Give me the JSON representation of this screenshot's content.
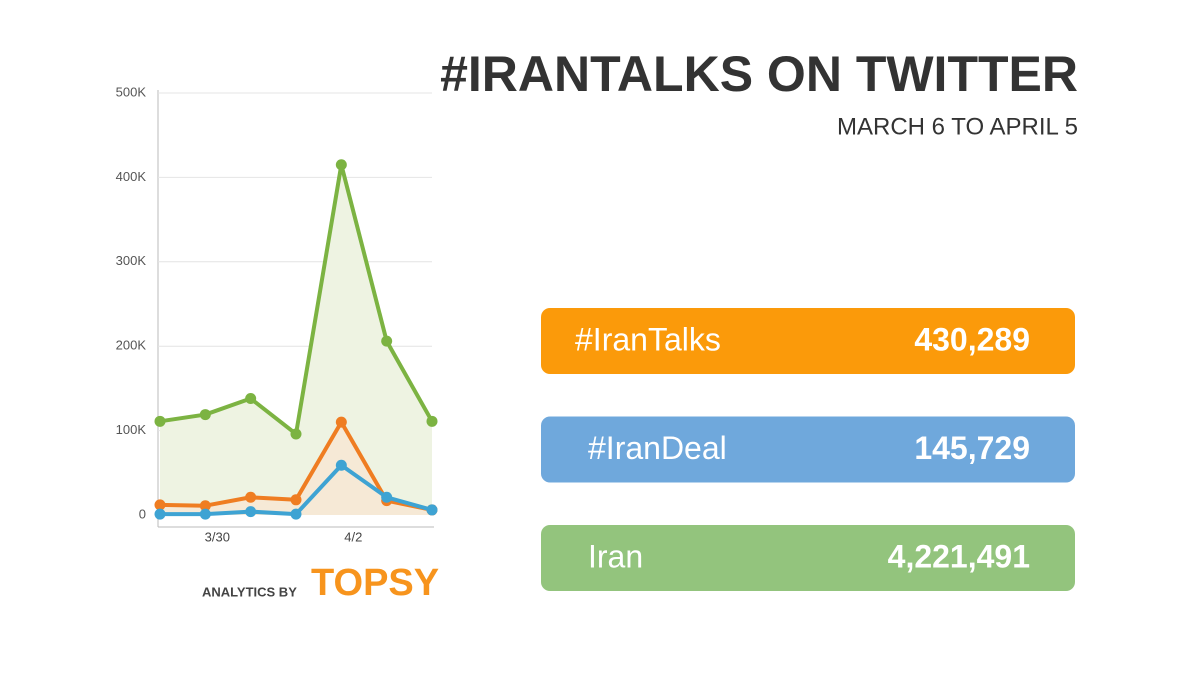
{
  "chart_data": {
    "type": "line",
    "title": "#IRANTALKS ON TWITTER",
    "subtitle": "MARCH 6 TO APRIL 5",
    "categories": [
      null,
      "3/30",
      null,
      null,
      "4/2",
      null,
      null
    ],
    "series": [
      {
        "color": "#7cb342",
        "fill": "#eef3e2",
        "values": [
          111000,
          119000,
          138000,
          96000,
          415000,
          206000,
          111000
        ]
      },
      {
        "color": "#ef7d22",
        "fill": "#f6e9d6",
        "values": [
          12000,
          11000,
          21000,
          18000,
          110000,
          17000,
          6000
        ]
      },
      {
        "color": "#3ea3d3",
        "values": [
          1000,
          1000,
          4000,
          1000,
          59000,
          21000,
          6000
        ]
      }
    ],
    "ylim": [
      0,
      500000
    ],
    "yticks": [
      0,
      {
        "value": 100000,
        "label": "100K"
      },
      {
        "value": 200000,
        "label": "200K"
      },
      {
        "value": 300000,
        "label": "300K"
      },
      {
        "value": 400000,
        "label": "400K"
      },
      {
        "value": 500000,
        "label": "500K"
      }
    ],
    "grid": true,
    "credit": {
      "prefix": "ANALYTICS BY",
      "brand": "TOPSY"
    },
    "summary": [
      {
        "label": "#IranTalks",
        "value": "430,289",
        "color": "#fb9a0a"
      },
      {
        "label": "#IranDeal",
        "value": "145,729",
        "color": "#6fa8dc"
      },
      {
        "label": "Iran",
        "value": "4,221,491",
        "color": "#93c47d"
      }
    ]
  }
}
